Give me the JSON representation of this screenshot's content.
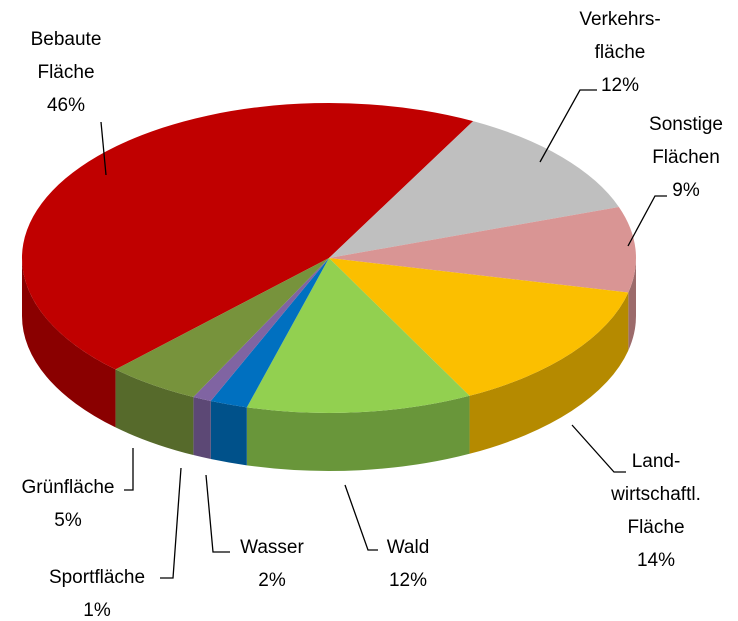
{
  "chart_data": {
    "type": "pie3d",
    "categories": [
      [
        "Bebaute",
        "Fläche"
      ],
      [
        "Verkehrs-",
        "fläche"
      ],
      [
        "Sonstige",
        "Flächen"
      ],
      [
        "Land-",
        "wirtschaftl.",
        "Fläche"
      ],
      [
        "Wald"
      ],
      [
        "Wasser"
      ],
      [
        "Sportfläche"
      ],
      [
        "Grünfläche"
      ]
    ],
    "values": [
      46,
      12,
      9,
      14,
      12,
      2,
      1,
      5
    ],
    "value_labels": [
      "46%",
      "12%",
      "9%",
      "14%",
      "12%",
      "2%",
      "1%",
      "5%"
    ],
    "colors": [
      "#c00000",
      "#bfbfbf",
      "#d99594",
      "#fbbf00",
      "#92d050",
      "#0070c0",
      "#8064a2",
      "#77933c"
    ]
  }
}
